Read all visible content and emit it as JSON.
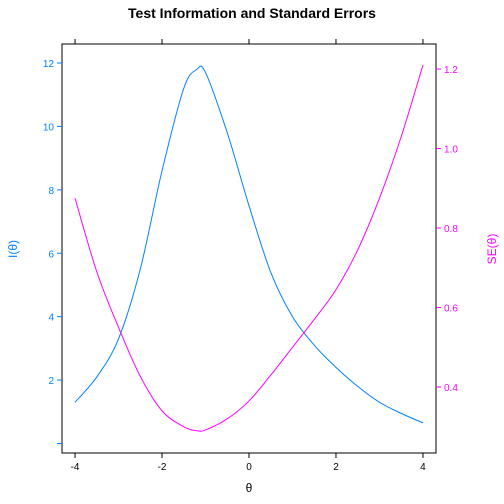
{
  "chart_data": {
    "type": "line",
    "title": "Test Information and Standard Errors",
    "xlabel": "θ",
    "ylabel_left": "I(θ)",
    "ylabel_right": "SE(θ)",
    "xlim": [
      -4.3,
      4.3
    ],
    "ylim_left": [
      -0.3,
      12.6
    ],
    "ylim_right": [
      0.234,
      1.263
    ],
    "x_ticks": [
      -4,
      -2,
      0,
      2,
      4
    ],
    "y_ticks_left": [
      2,
      4,
      6,
      8,
      10,
      12
    ],
    "y_ticks_right": [
      0.4,
      0.6,
      0.8,
      1.0,
      1.2
    ],
    "x_tick_labels": [
      "-4",
      "-2",
      "0",
      "2",
      "4"
    ],
    "y_tick_labels_left": [
      "2",
      "4",
      "6",
      "8",
      "10",
      "12"
    ],
    "y_tick_labels_right": [
      "0.4",
      "0.6",
      "0.8",
      "1.0",
      "1.2"
    ],
    "grid": false,
    "colors": {
      "information": "#0080ff",
      "standard_error": "#ff00ff",
      "axes": "#000000"
    },
    "series": [
      {
        "axis": "left",
        "x": [
          -4.0,
          -3.5,
          -3.0,
          -2.5,
          -2.0,
          -1.5,
          -1.2,
          -1.0,
          -0.5,
          0.0,
          0.5,
          1.0,
          1.5,
          2.0,
          2.5,
          3.0,
          3.5,
          4.0
        ],
        "values": [
          1.3,
          2.1,
          3.3,
          5.5,
          8.6,
          11.2,
          11.8,
          11.7,
          9.8,
          7.5,
          5.4,
          4.0,
          3.1,
          2.4,
          1.8,
          1.3,
          0.95,
          0.65
        ]
      },
      {
        "axis": "right",
        "x": [
          -4.0,
          -3.5,
          -3.0,
          -2.5,
          -2.0,
          -1.5,
          -1.2,
          -1.0,
          -0.5,
          0.0,
          0.5,
          1.0,
          1.5,
          2.0,
          2.5,
          3.0,
          3.5,
          4.0
        ],
        "values": [
          0.875,
          0.69,
          0.55,
          0.427,
          0.34,
          0.3,
          0.29,
          0.292,
          0.32,
          0.365,
          0.43,
          0.5,
          0.57,
          0.645,
          0.745,
          0.875,
          1.03,
          1.21
        ]
      }
    ]
  }
}
